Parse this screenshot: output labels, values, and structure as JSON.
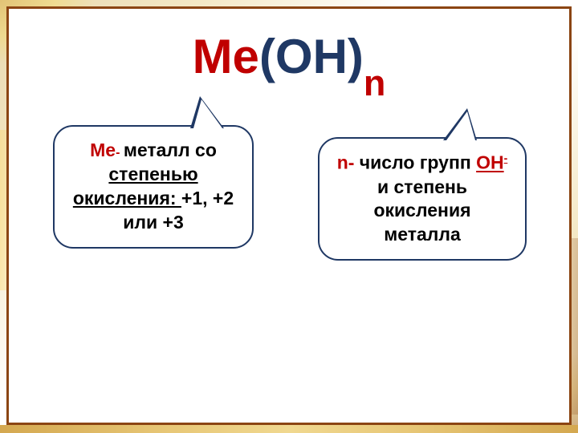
{
  "formula": {
    "me": "Me",
    "oh": "(OH)",
    "n": "n"
  },
  "callout_left": {
    "prefix": "Me",
    "dash": "- ",
    "text1": " металл со ",
    "link": "степенью окисления: ",
    "text2": "+1, +2 или +3"
  },
  "callout_right": {
    "prefix": "n- ",
    "text1": "число групп ",
    "oh": "OH",
    "sup": "-",
    "text2": " и степень окисления металла"
  },
  "styling": {
    "title_fontsize": 60,
    "bubble_fontsize": 23,
    "color_red": "#c00000",
    "color_darkblue": "#1f3864",
    "color_black": "#000000",
    "border_color": "#8b4513",
    "background": "#ffffff",
    "bubble_border_radius": 25,
    "bubble_border_width": 2,
    "frame_border_width": 3
  }
}
